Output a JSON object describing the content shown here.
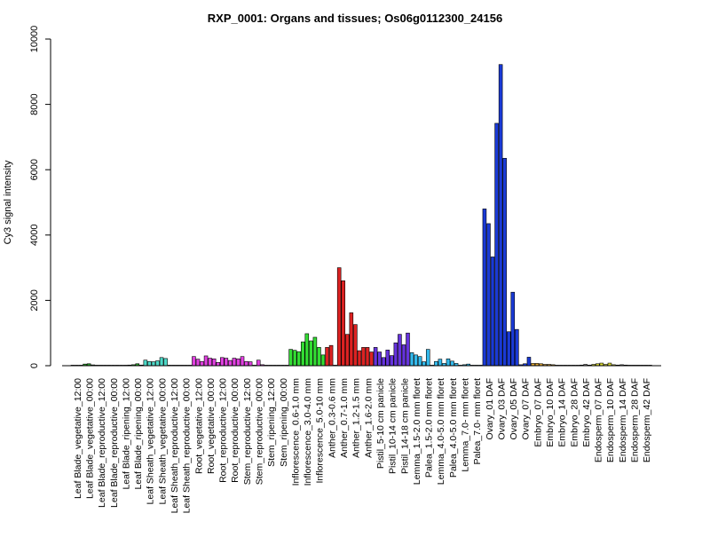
{
  "chart_data": {
    "type": "bar",
    "title": "RXP_0001: Organs and tissues; Os06g0112300_24156",
    "xlabel": "",
    "ylabel": "Cy3 signal intensity",
    "ylim": [
      0,
      10000
    ],
    "yticks": [
      0,
      2000,
      4000,
      6000,
      8000,
      10000
    ],
    "grid": false,
    "legend": "none",
    "groups": [
      {
        "label": "Leaf Blade_vegetative_12:00",
        "color": "#7f7f7f",
        "values": [
          5,
          5,
          10
        ]
      },
      {
        "label": "Leaf Blade_vegetative_00:00",
        "color": "#2ca02c",
        "values": [
          50,
          60,
          25
        ]
      },
      {
        "label": "Leaf Blade_reproductive_12:00",
        "color": "#7f7f7f",
        "values": [
          10,
          10,
          10
        ]
      },
      {
        "label": "Leaf Blade_reproductive_00:00",
        "color": "#7f7f7f",
        "values": [
          10,
          10,
          10
        ]
      },
      {
        "label": "Leaf Blade_ripening_12:00",
        "color": "#7f7f7f",
        "values": [
          15,
          15,
          20
        ]
      },
      {
        "label": "Leaf Blade_ripening_00:00",
        "color": "#2ca02c",
        "values": [
          30,
          60,
          20
        ]
      },
      {
        "label": "Leaf Sheath_vegetative_12:00",
        "color": "#4dd9c8",
        "values": [
          170,
          130,
          120
        ]
      },
      {
        "label": "Leaf Sheath_vegetative_00:00",
        "color": "#4dd9c8",
        "values": [
          150,
          250,
          220
        ]
      },
      {
        "label": "Leaf Sheath_reproductive_12:00",
        "color": "#7f7f7f",
        "values": [
          10,
          10,
          10
        ]
      },
      {
        "label": "Leaf Sheath_reproductive_00:00",
        "color": "#7f7f7f",
        "values": [
          10,
          10,
          10
        ]
      },
      {
        "label": "Root_vegetative_12:00",
        "color": "#e040e0",
        "values": [
          280,
          200,
          130
        ]
      },
      {
        "label": "Root_vegetative_00:00",
        "color": "#e040e0",
        "values": [
          300,
          230,
          210
        ]
      },
      {
        "label": "Root_reproductive_12:00",
        "color": "#e040e0",
        "values": [
          100,
          250,
          230
        ]
      },
      {
        "label": "Root_reproductive_00:00",
        "color": "#e040e0",
        "values": [
          160,
          230,
          210
        ]
      },
      {
        "label": "Stem_reproductive_12:00",
        "color": "#e040e0",
        "values": [
          280,
          130,
          120
        ]
      },
      {
        "label": "Stem_reproductive_00:00",
        "color": "#e040e0",
        "values": [
          10,
          170,
          30
        ]
      },
      {
        "label": "Stem_ripening_12:00",
        "color": "#7f7f7f",
        "values": [
          10,
          10,
          15
        ]
      },
      {
        "label": "Stem_ripening_00:00",
        "color": "#7f7f7f",
        "values": [
          10,
          10,
          15
        ]
      },
      {
        "label": "Inflorescence_0.6-1.0 mm",
        "color": "#33dd33",
        "values": [
          500,
          470,
          430
        ]
      },
      {
        "label": "Inflorescence_3.0-4.0 mm",
        "color": "#33dd33",
        "values": [
          730,
          980,
          760
        ]
      },
      {
        "label": "Inflorescence_5.0-10 mm",
        "color": "#33dd33",
        "values": [
          870,
          560,
          330
        ]
      },
      {
        "label": "Anther_0.3-0.6 mm",
        "color": "#dd2222",
        "values": [
          560,
          620,
          10
        ]
      },
      {
        "label": "Anther_0.7-1.0 mm",
        "color": "#dd2222",
        "values": [
          3000,
          2600,
          960
        ]
      },
      {
        "label": "Anther_1.2-1.5 mm",
        "color": "#dd2222",
        "values": [
          1620,
          1260,
          460
        ]
      },
      {
        "label": "Anther_1.6-2.0 mm",
        "color": "#dd2222",
        "values": [
          560,
          560,
          420
        ]
      },
      {
        "label": "Pistil_5-10 cm panicle",
        "color": "#6633dd",
        "values": [
          560,
          420,
          250
        ]
      },
      {
        "label": "Pistil_10-14 cm panicle",
        "color": "#6633dd",
        "values": [
          480,
          310,
          700
        ]
      },
      {
        "label": "Pistil_14-18 cm panicle",
        "color": "#6633dd",
        "values": [
          960,
          640,
          1000
        ]
      },
      {
        "label": "Lemma_1.5-2.0 mm floret",
        "color": "#33bbee",
        "values": [
          400,
          330,
          280
        ]
      },
      {
        "label": "Palea_1.5-2.0 mm floret",
        "color": "#33bbee",
        "values": [
          120,
          500,
          10
        ]
      },
      {
        "label": "Lemma_4.0-5.0 mm floret",
        "color": "#33bbee",
        "values": [
          130,
          200,
          70
        ]
      },
      {
        "label": "Palea_4.0-5.0 mm floret",
        "color": "#33bbee",
        "values": [
          210,
          140,
          70
        ]
      },
      {
        "label": "Lemma_7.0- mm floret",
        "color": "#33bbee",
        "values": [
          15,
          30,
          50
        ]
      },
      {
        "label": "Palea_7.0- mm floret",
        "color": "#33bbee",
        "values": [
          10,
          10,
          10
        ]
      },
      {
        "label": "Ovary_01 DAF",
        "color": "#1a3ad6",
        "values": [
          4800,
          4350,
          3330
        ]
      },
      {
        "label": "Ovary_03 DAF",
        "color": "#1a3ad6",
        "values": [
          7420,
          9220,
          6350
        ]
      },
      {
        "label": "Ovary_05 DAF",
        "color": "#1a3ad6",
        "values": [
          1040,
          2250,
          1110
        ]
      },
      {
        "label": "Ovary_07 DAF",
        "color": "#1a3ad6",
        "values": [
          30,
          60,
          260
        ]
      },
      {
        "label": "Embryo_07 DAF",
        "color": "#d9a030",
        "values": [
          70,
          70,
          60
        ]
      },
      {
        "label": "Embryo_10 DAF",
        "color": "#d9a030",
        "values": [
          40,
          40,
          30
        ]
      },
      {
        "label": "Embryo_14 DAF",
        "color": "#7f7f7f",
        "values": [
          10,
          10,
          10
        ]
      },
      {
        "label": "Embryo_28 DAF",
        "color": "#7f7f7f",
        "values": [
          10,
          10,
          10
        ]
      },
      {
        "label": "Embryo_42 DAF",
        "color": "#7f7f7f",
        "values": [
          20,
          40,
          20
        ]
      },
      {
        "label": "Endosperm_07 DAF",
        "color": "#dddd33",
        "values": [
          40,
          60,
          80
        ]
      },
      {
        "label": "Endosperm_10 DAF",
        "color": "#dddd33",
        "values": [
          40,
          80,
          30
        ]
      },
      {
        "label": "Endosperm_14 DAF",
        "color": "#7f7f7f",
        "values": [
          20,
          30,
          20
        ]
      },
      {
        "label": "Endosperm_28 DAF",
        "color": "#7f7f7f",
        "values": [
          10,
          10,
          10
        ]
      },
      {
        "label": "Endosperm_42 DAF",
        "color": "#7f7f7f",
        "values": [
          10,
          10,
          10
        ]
      }
    ]
  }
}
